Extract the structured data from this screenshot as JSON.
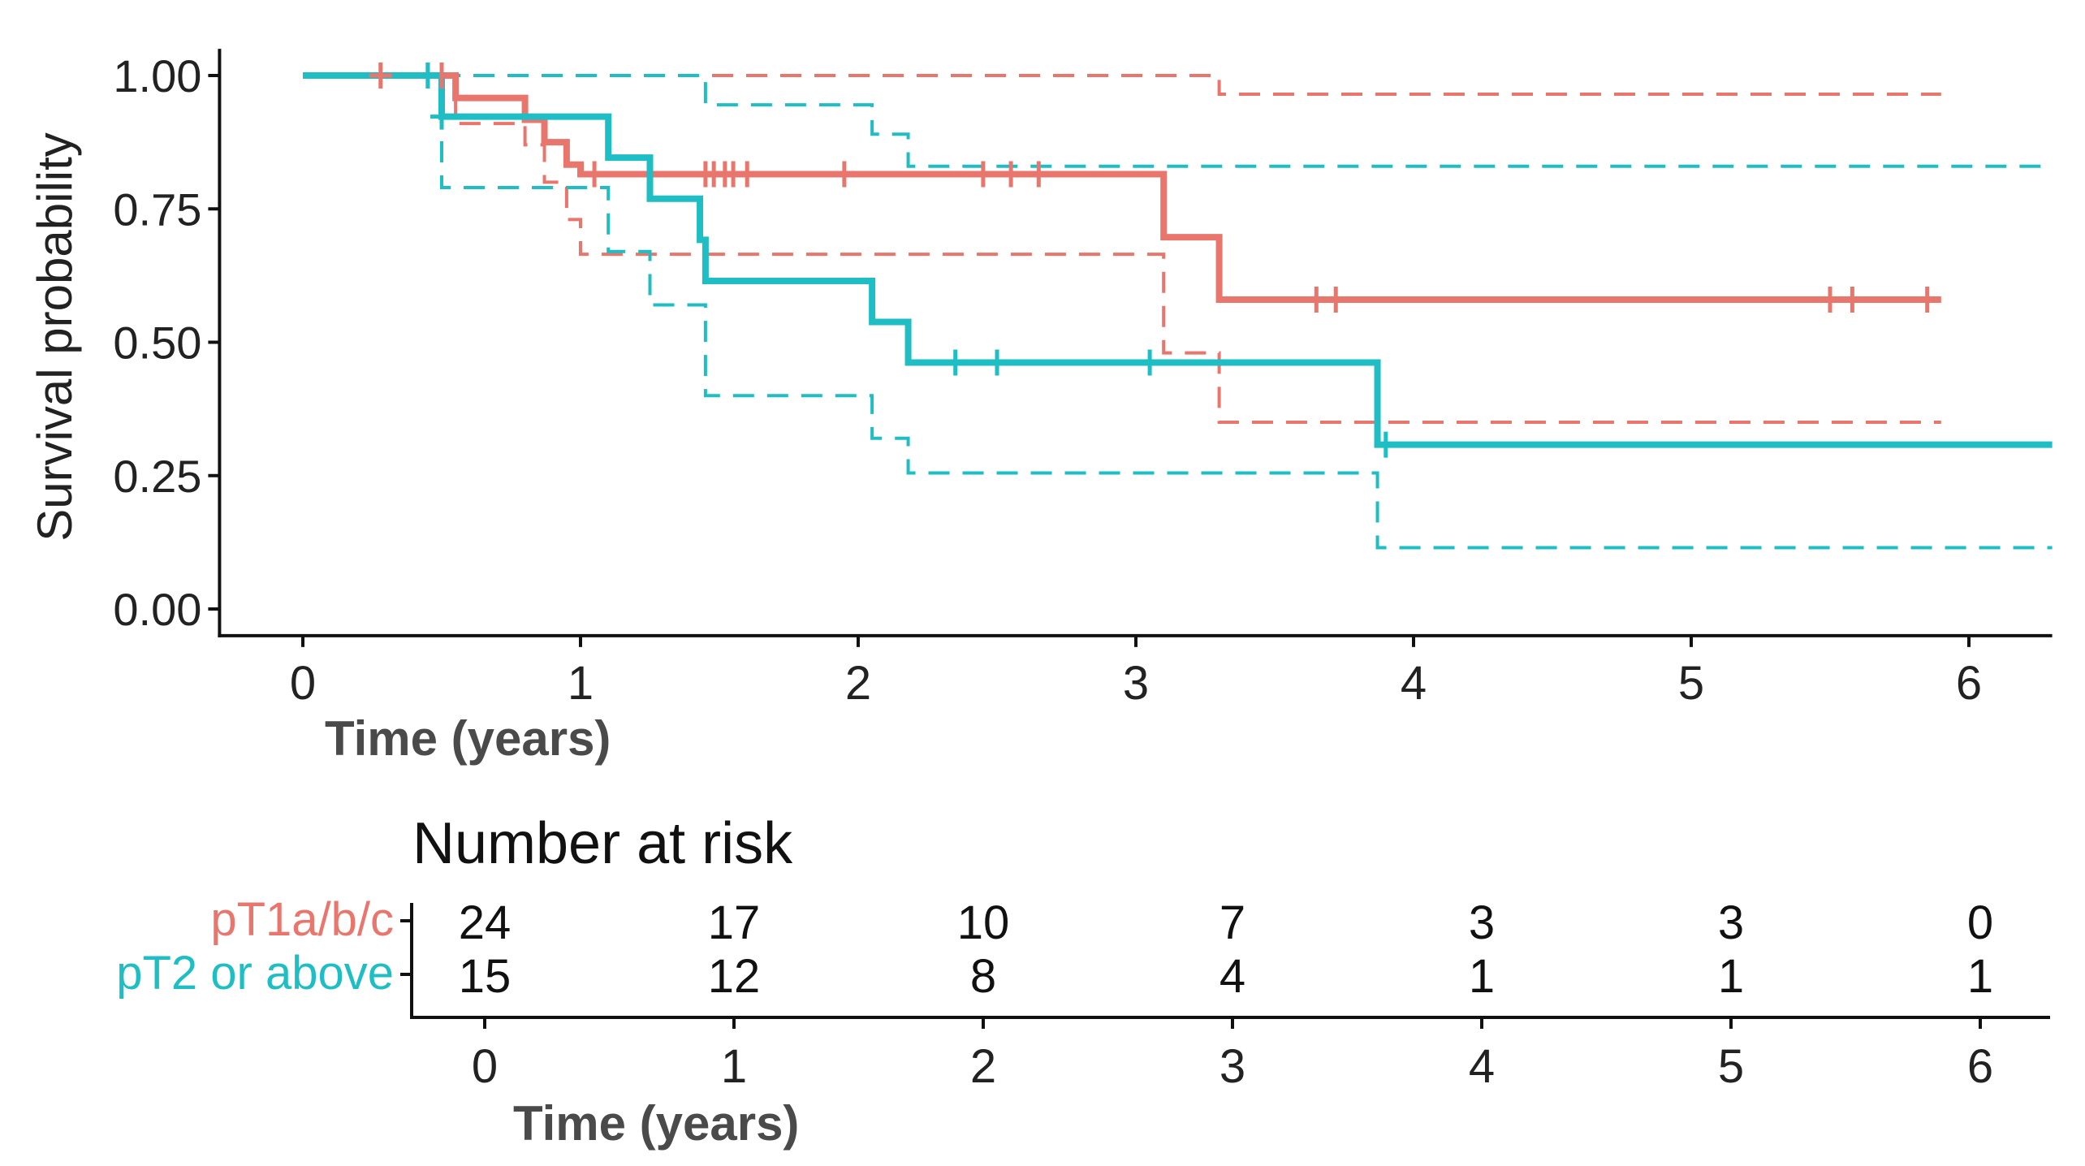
{
  "chart_data": [
    {
      "type": "line",
      "subtype": "kaplan-meier",
      "title": "",
      "xlabel": "Time (years)",
      "ylabel": "Survival probability",
      "xlim": [
        -0.3,
        6.3
      ],
      "ylim": [
        -0.05,
        1.05
      ],
      "xticks": [
        0,
        1,
        2,
        3,
        4,
        5,
        6
      ],
      "xtick_labels": [
        "0",
        "1",
        "2",
        "3",
        "4",
        "5",
        "6"
      ],
      "yticks": [
        0,
        0.25,
        0.5,
        0.75,
        1.0
      ],
      "ytick_labels": [
        "0.00",
        "0.25",
        "0.50",
        "0.75",
        "1.00"
      ],
      "grid": false,
      "legend": "none",
      "series": [
        {
          "name": "pT1a/b/c",
          "color": "#E8766D",
          "steps": [
            [
              0,
              1.0
            ],
            [
              0.55,
              0.958
            ],
            [
              0.8,
              0.917
            ],
            [
              0.87,
              0.875
            ],
            [
              0.95,
              0.833
            ],
            [
              1.0,
              0.815
            ],
            [
              3.1,
              0.697
            ],
            [
              3.3,
              0.58
            ],
            [
              5.9,
              0.58
            ]
          ],
          "censor_times": [
            0.28,
            0.45,
            0.5,
            1.05,
            1.45,
            1.48,
            1.52,
            1.55,
            1.6,
            1.95,
            2.45,
            2.55,
            2.65,
            3.65,
            3.72,
            5.5,
            5.58,
            5.85
          ],
          "ci_upper": [
            [
              0,
              1.0
            ],
            [
              3.3,
              1.0
            ],
            [
              3.3,
              0.965
            ],
            [
              5.9,
              0.965
            ]
          ],
          "ci_lower": [
            [
              0,
              1.0
            ],
            [
              0.55,
              0.91
            ],
            [
              0.8,
              0.87
            ],
            [
              0.87,
              0.8
            ],
            [
              0.95,
              0.73
            ],
            [
              1.0,
              0.665
            ],
            [
              3.1,
              0.48
            ],
            [
              3.3,
              0.35
            ],
            [
              5.9,
              0.35
            ]
          ]
        },
        {
          "name": "pT2 or above",
          "color": "#1FBDC4",
          "steps": [
            [
              0,
              1.0
            ],
            [
              0.5,
              0.923
            ],
            [
              1.1,
              0.846
            ],
            [
              1.25,
              0.769
            ],
            [
              1.43,
              0.692
            ],
            [
              1.45,
              0.615
            ],
            [
              2.05,
              0.538
            ],
            [
              2.18,
              0.462
            ],
            [
              3.87,
              0.308
            ],
            [
              6.3,
              0.308
            ]
          ],
          "censor_times": [
            0.45,
            0.5,
            2.35,
            2.5,
            3.05,
            3.9
          ],
          "ci_upper": [
            [
              0,
              1.0
            ],
            [
              1.45,
              1.0
            ],
            [
              1.45,
              0.945
            ],
            [
              2.05,
              0.945
            ],
            [
              2.05,
              0.89
            ],
            [
              2.18,
              0.83
            ],
            [
              6.3,
              0.83
            ]
          ],
          "ci_lower": [
            [
              0,
              1.0
            ],
            [
              0.5,
              0.79
            ],
            [
              1.1,
              0.67
            ],
            [
              1.25,
              0.57
            ],
            [
              1.45,
              0.4
            ],
            [
              2.05,
              0.32
            ],
            [
              2.18,
              0.255
            ],
            [
              3.87,
              0.115
            ],
            [
              6.3,
              0.115
            ]
          ]
        }
      ]
    },
    {
      "type": "table",
      "title": "Number at risk",
      "xlabel": "Time (years)",
      "xticks": [
        0,
        1,
        2,
        3,
        4,
        5,
        6
      ],
      "xtick_labels": [
        "0",
        "1",
        "2",
        "3",
        "4",
        "5",
        "6"
      ],
      "rows": [
        {
          "name": "pT1a/b/c",
          "color": "#E8766D",
          "values": [
            24,
            17,
            10,
            7,
            3,
            3,
            0
          ]
        },
        {
          "name": "pT2 or above",
          "color": "#1FBDC4",
          "values": [
            15,
            12,
            8,
            4,
            1,
            1,
            1
          ]
        }
      ]
    }
  ]
}
